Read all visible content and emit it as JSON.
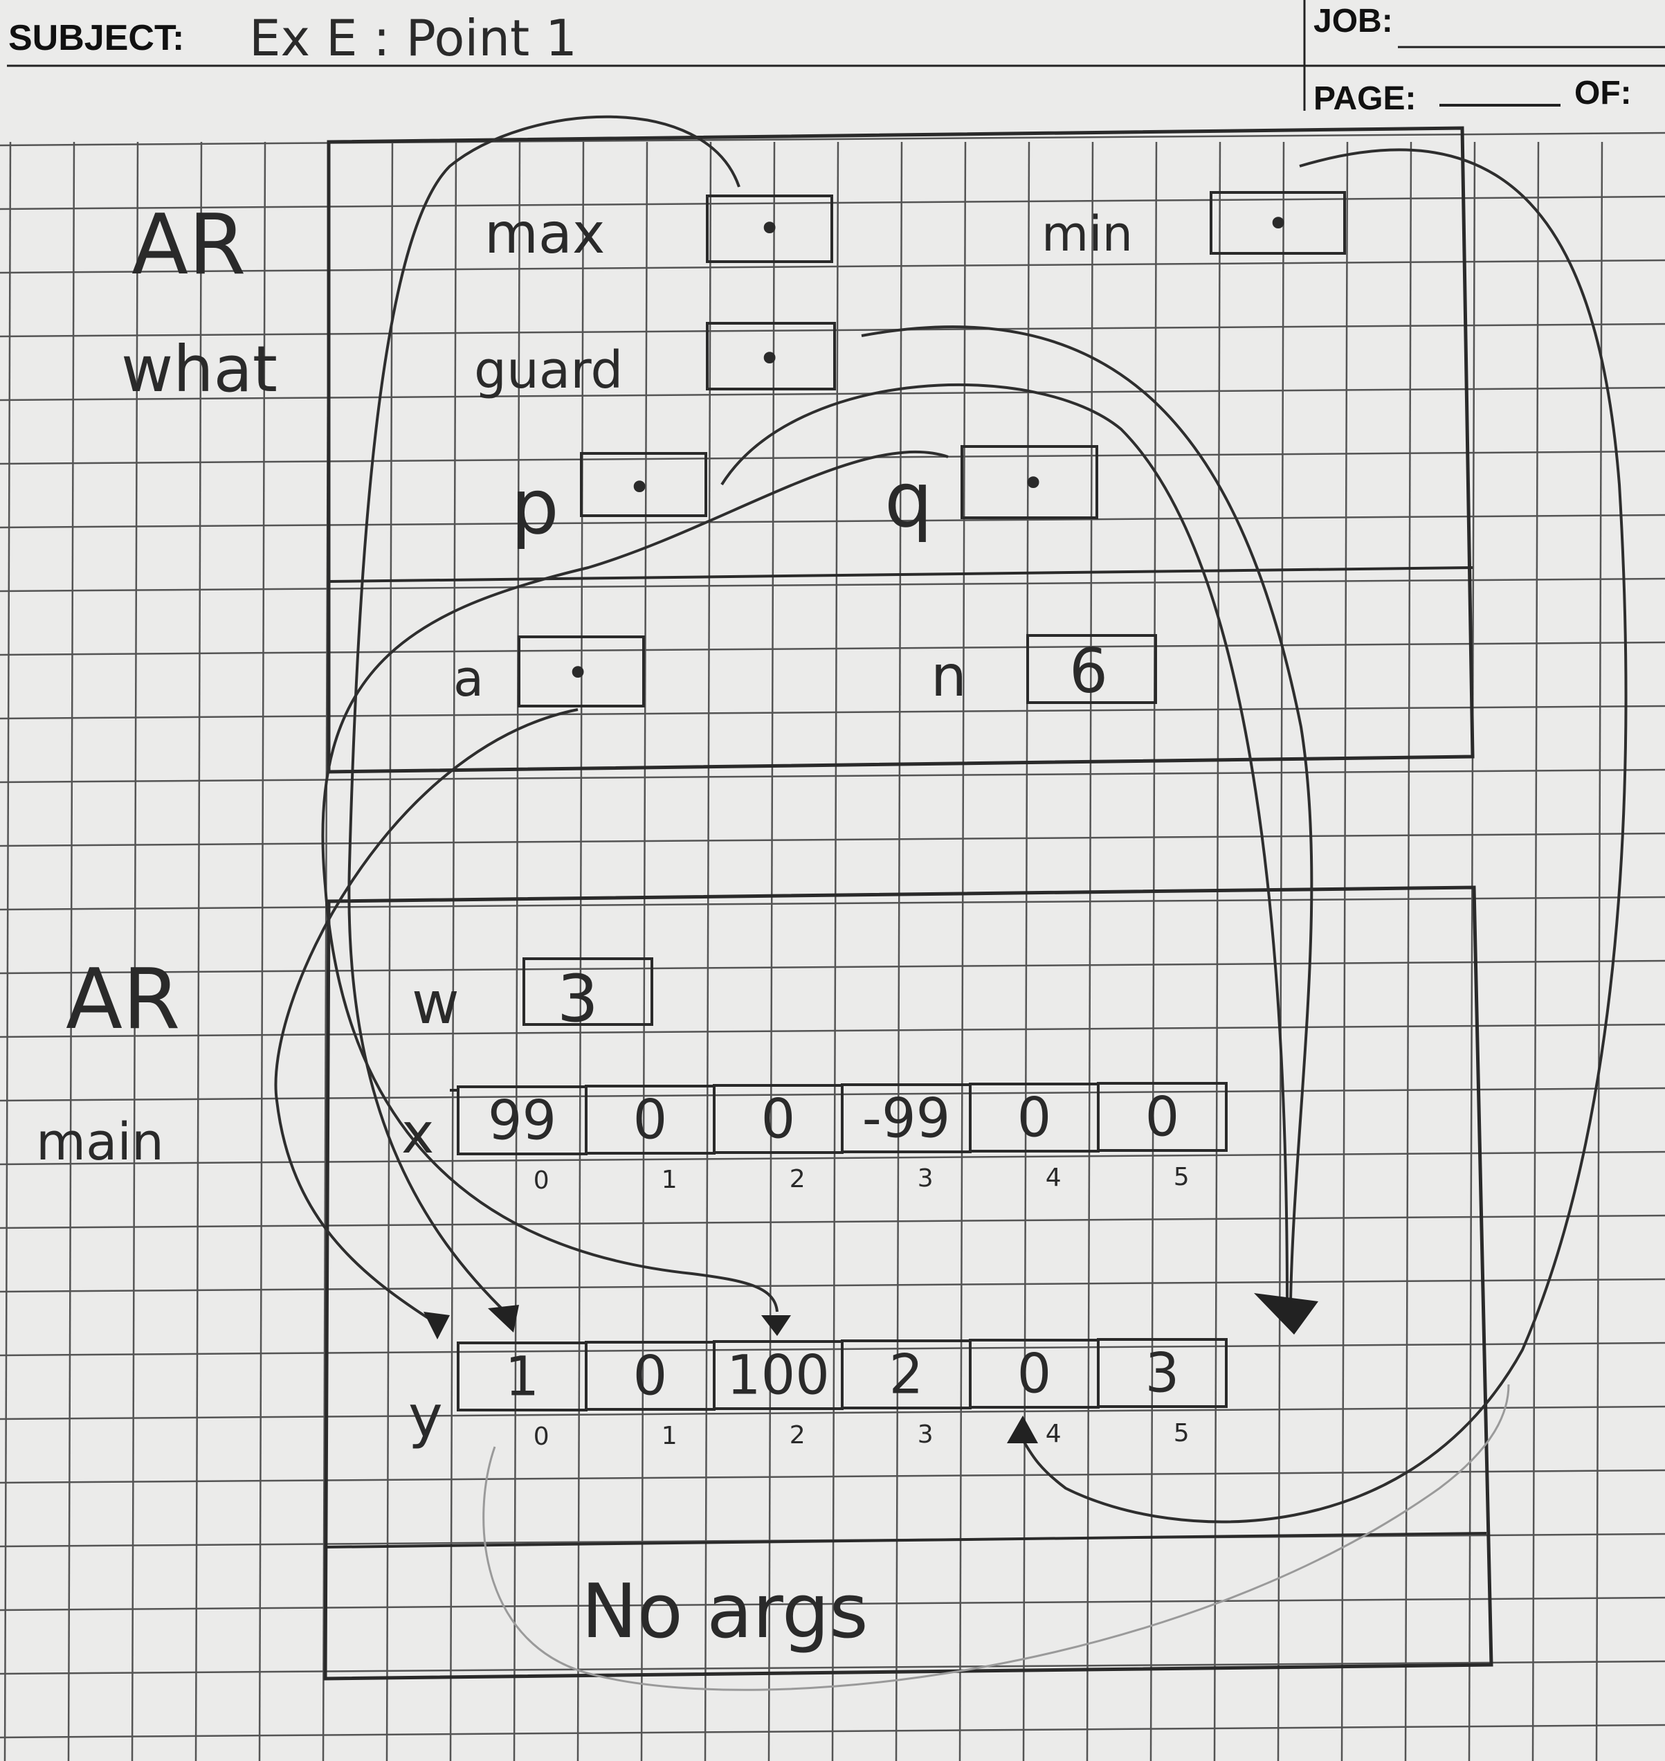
{
  "header": {
    "subject_label": "SUBJECT:",
    "subject_value": "Ex E : Point 1",
    "job_label": "JOB:",
    "page_label": "PAGE:",
    "of_label": "OF:"
  },
  "frames": {
    "what": {
      "title_line1": "AR",
      "title_line2": "what",
      "vars": [
        {
          "name": "max",
          "value": "•"
        },
        {
          "name": "min",
          "value": "•"
        },
        {
          "name": "guard",
          "value": "•"
        },
        {
          "name": "p",
          "value": "•"
        },
        {
          "name": "q",
          "value": "•"
        }
      ],
      "params": [
        {
          "name": "a",
          "value": "•"
        },
        {
          "name": "n",
          "value": "6"
        }
      ]
    },
    "main": {
      "title_line1": "AR",
      "title_line2": "main",
      "w": {
        "name": "w",
        "value": "3"
      },
      "x": {
        "name": "x",
        "values": [
          "99",
          "0",
          "0",
          "-99",
          "0",
          "0"
        ],
        "indices": [
          "0",
          "1",
          "2",
          "3",
          "4",
          "5"
        ]
      },
      "y": {
        "name": "y",
        "values": [
          "1",
          "0",
          "100",
          "2",
          "0",
          "3"
        ],
        "indices": [
          "0",
          "1",
          "2",
          "3",
          "4",
          "5"
        ]
      },
      "args_note": "No args"
    }
  },
  "colors": {
    "paper": "#ebebea",
    "grid": "#3a3a3a",
    "ink": "#2a2a2a"
  }
}
